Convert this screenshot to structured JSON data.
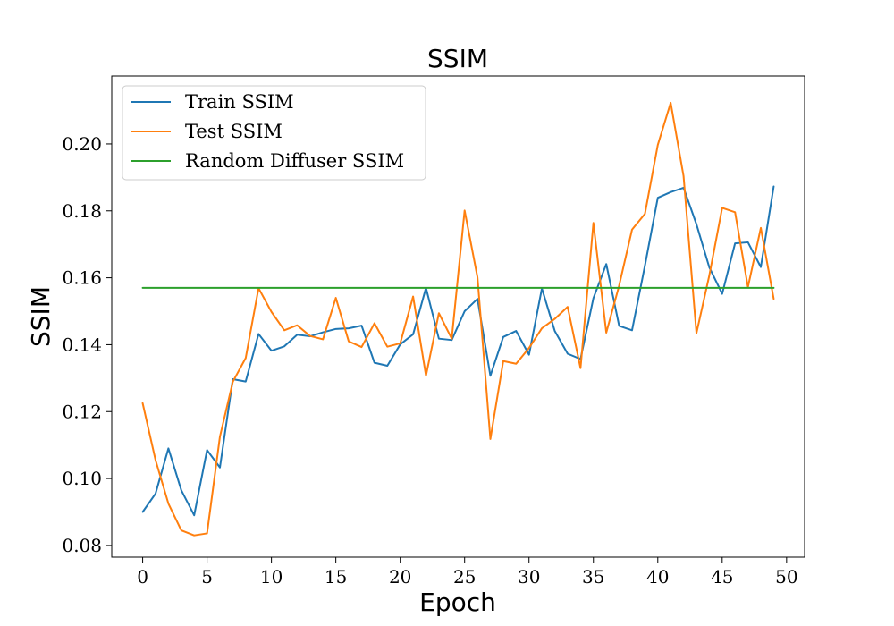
{
  "chart_data": {
    "type": "line",
    "title": "SSIM",
    "xlabel": "Epoch",
    "ylabel": "SSIM",
    "xlim": [
      -2.4,
      51.4
    ],
    "ylim": [
      0.0765,
      0.2203
    ],
    "xticks": [
      0,
      5,
      10,
      15,
      20,
      25,
      30,
      35,
      40,
      45,
      50
    ],
    "yticks": [
      0.08,
      0.1,
      0.12,
      0.14,
      0.16,
      0.18,
      0.2
    ],
    "ytick_labels": [
      "0.08",
      "0.10",
      "0.12",
      "0.14",
      "0.16",
      "0.18",
      "0.20"
    ],
    "grid": false,
    "legend_position": "top-left",
    "x": [
      0,
      1,
      2,
      3,
      4,
      5,
      6,
      7,
      8,
      9,
      10,
      11,
      12,
      13,
      14,
      15,
      16,
      17,
      18,
      19,
      20,
      21,
      22,
      23,
      24,
      25,
      26,
      27,
      28,
      29,
      30,
      31,
      32,
      33,
      34,
      35,
      36,
      37,
      38,
      39,
      40,
      41,
      42,
      43,
      44,
      45,
      46,
      47,
      48,
      49
    ],
    "series": [
      {
        "name": "Train SSIM",
        "color": "#1f77b4",
        "values": [
          0.09,
          0.0955,
          0.109,
          0.0965,
          0.089,
          0.1085,
          0.1033,
          0.1297,
          0.129,
          0.1432,
          0.1382,
          0.1395,
          0.143,
          0.1425,
          0.1437,
          0.1447,
          0.1449,
          0.1457,
          0.1346,
          0.1337,
          0.1401,
          0.1431,
          0.157,
          0.1418,
          0.1414,
          0.15,
          0.1537,
          0.1307,
          0.1423,
          0.1441,
          0.137,
          0.1568,
          0.1441,
          0.1373,
          0.1357,
          0.1539,
          0.1641,
          0.1456,
          0.1443,
          0.1636,
          0.1839,
          0.1856,
          0.1869,
          0.176,
          0.1631,
          0.1552,
          0.1703,
          0.1706,
          0.1632,
          0.1873
        ]
      },
      {
        "name": "Test SSIM",
        "color": "#ff7f0e",
        "values": [
          0.1225,
          0.1055,
          0.0925,
          0.0845,
          0.083,
          0.0836,
          0.1125,
          0.1289,
          0.136,
          0.1569,
          0.1498,
          0.1443,
          0.1458,
          0.1426,
          0.1416,
          0.154,
          0.141,
          0.1393,
          0.1464,
          0.1394,
          0.1404,
          0.1544,
          0.1307,
          0.1494,
          0.1418,
          0.1801,
          0.1601,
          0.1118,
          0.1351,
          0.1343,
          0.139,
          0.1449,
          0.1477,
          0.1513,
          0.133,
          0.1764,
          0.1436,
          0.1577,
          0.1744,
          0.1791,
          0.1997,
          0.2123,
          0.1904,
          0.1434,
          0.1607,
          0.1809,
          0.1796,
          0.1572,
          0.1749,
          0.1537
        ]
      },
      {
        "name": "Random Diffuser SSIM",
        "color": "#2ca02c",
        "values": [
          0.157,
          0.157,
          0.157,
          0.157,
          0.157,
          0.157,
          0.157,
          0.157,
          0.157,
          0.157,
          0.157,
          0.157,
          0.157,
          0.157,
          0.157,
          0.157,
          0.157,
          0.157,
          0.157,
          0.157,
          0.157,
          0.157,
          0.157,
          0.157,
          0.157,
          0.157,
          0.157,
          0.157,
          0.157,
          0.157,
          0.157,
          0.157,
          0.157,
          0.157,
          0.157,
          0.157,
          0.157,
          0.157,
          0.157,
          0.157,
          0.157,
          0.157,
          0.157,
          0.157,
          0.157,
          0.157,
          0.157,
          0.157,
          0.157,
          0.157
        ]
      }
    ]
  }
}
